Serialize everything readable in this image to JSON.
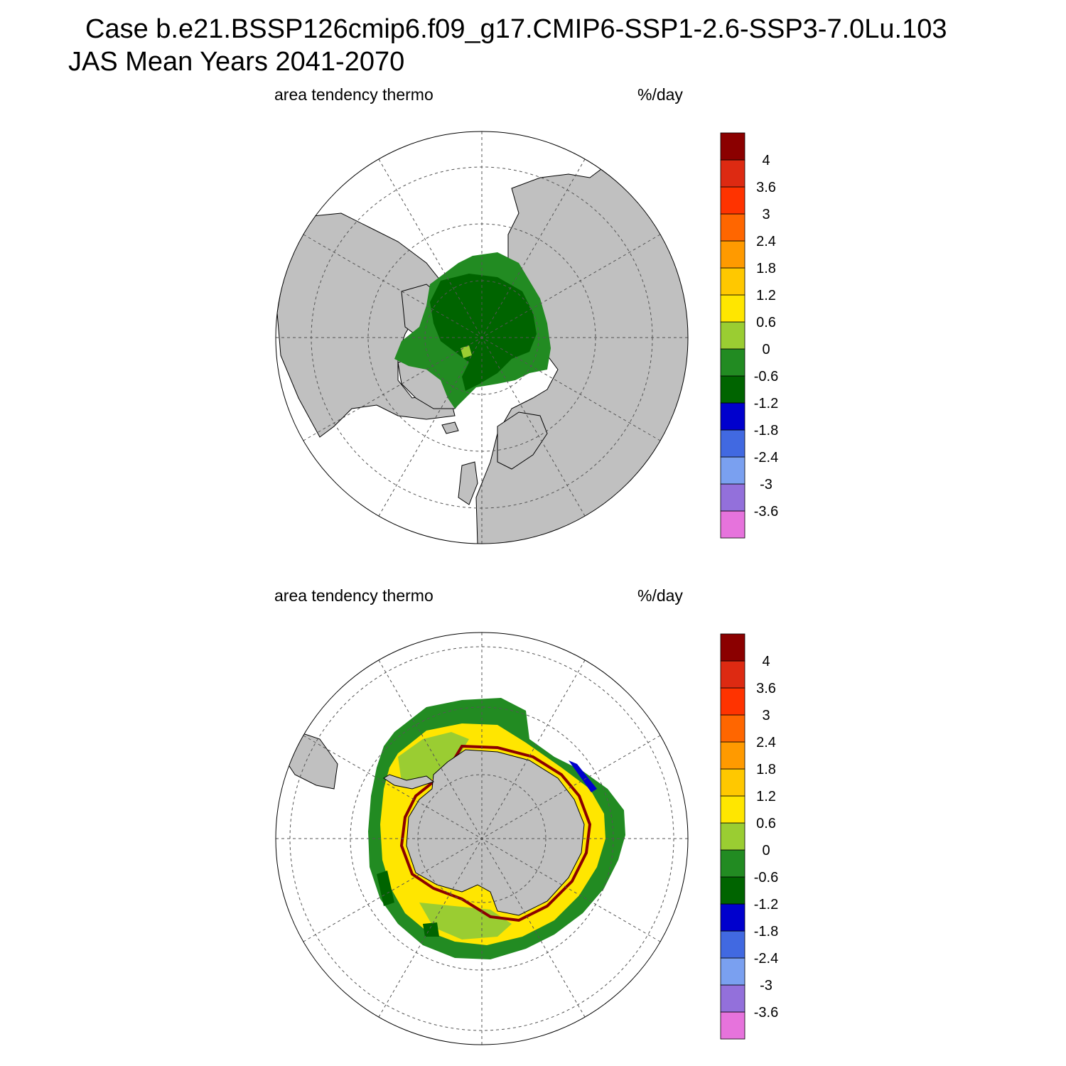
{
  "title": {
    "line1": "Case b.e21.BSSP126cmip6.f09_g17.CMIP6-SSP1-2.6-SSP3-7.0Lu.103",
    "line2": "JAS Mean   Years 2041-2070"
  },
  "panels": [
    {
      "id": "north",
      "hemisphere": "Northern",
      "left_label": "area tendency thermo",
      "right_label": "%/day"
    },
    {
      "id": "south",
      "hemisphere": "Southern",
      "left_label": "area tendency thermo",
      "right_label": "%/day"
    }
  ],
  "colorbar": {
    "colors": [
      "#e673dc",
      "#9370db",
      "#7aa0f0",
      "#4169e1",
      "#0000cd",
      "#006400",
      "#228b22",
      "#9acd32",
      "#ffe600",
      "#ffc800",
      "#ff9a00",
      "#ff6600",
      "#ff3300",
      "#dd2a12",
      "#8b0000"
    ],
    "tick_labels": [
      "-3.6",
      "-3",
      "-2.4",
      "-1.8",
      "-1.2",
      "-0.6",
      "0",
      "0.6",
      "1.2",
      "1.8",
      "2.4",
      "3",
      "3.6",
      "4"
    ]
  },
  "map_colors": {
    "land": "#c0c0c0",
    "ocean": "#ffffff",
    "grid": "#555555"
  }
}
